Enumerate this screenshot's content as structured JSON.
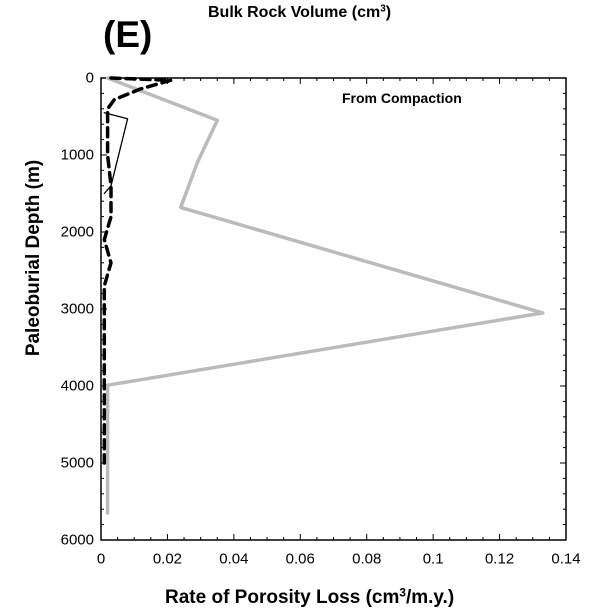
{
  "panel_label": "(E)",
  "top_title": {
    "text": "Bulk Rock Volume (cm",
    "sup": "3",
    "close": ")"
  },
  "x_title": {
    "text": "Rate of Porosity Loss (cm",
    "sup": "3",
    "close": "/m.y.)"
  },
  "y_title": "Paleoburial Depth (m)",
  "annotation": "From Compaction",
  "chart_data": {
    "type": "line",
    "title": "Bulk Rock Volume (cm3)",
    "xlabel": "Rate of Porosity Loss (cm3/m.y.)",
    "ylabel": "Paleoburial Depth (m)",
    "xlim": [
      0,
      0.14
    ],
    "ylim": [
      0,
      6000
    ],
    "y_inverted": true,
    "x_ticks": [
      "0",
      "0.02",
      "0.04",
      "0.06",
      "0.08",
      "0.1",
      "0.12",
      "0.14"
    ],
    "y_ticks": [
      "0",
      "1000",
      "2000",
      "3000",
      "4000",
      "5000",
      "6000"
    ],
    "grid": false,
    "annotations": [
      "From Compaction"
    ],
    "series": [
      {
        "color": "#bbbbbb",
        "style": "solid",
        "points": [
          [
            0.002,
            0
          ],
          [
            0.035,
            550
          ],
          [
            0.029,
            1100
          ],
          [
            0.024,
            1680
          ],
          [
            0.133,
            3050
          ],
          [
            0.002,
            3990
          ],
          [
            0.002,
            5650
          ]
        ]
      },
      {
        "color": "#000000",
        "style": "dashed",
        "points": [
          [
            0.003,
            0
          ],
          [
            0.021,
            30
          ],
          [
            0.012,
            140
          ],
          [
            0.004,
            280
          ],
          [
            0.002,
            400
          ],
          [
            0.002,
            1000
          ],
          [
            0.003,
            1400
          ],
          [
            0.003,
            1800
          ],
          [
            0.001,
            2100
          ],
          [
            0.003,
            2400
          ],
          [
            0.001,
            2700
          ],
          [
            0.001,
            3400
          ],
          [
            0.001,
            4000
          ],
          [
            0.001,
            5000
          ]
        ]
      },
      {
        "color": "#000000",
        "style": "solid-thin",
        "points": [
          [
            0.001,
            450
          ],
          [
            0.008,
            530
          ],
          [
            0.003,
            1400
          ],
          [
            0.001,
            1500
          ]
        ]
      }
    ]
  }
}
